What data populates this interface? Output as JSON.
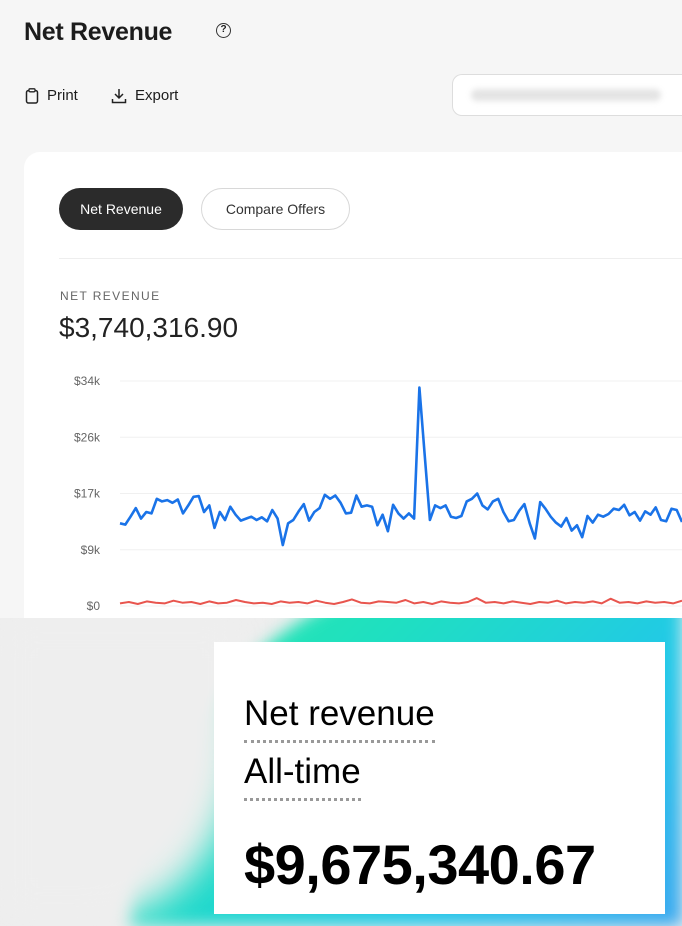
{
  "header": {
    "title": "Net Revenue",
    "help_icon": "question-circle-icon",
    "print_label": "Print",
    "export_label": "Export"
  },
  "card": {
    "tabs": [
      {
        "label": "Net Revenue",
        "active": true
      },
      {
        "label": "Compare Offers",
        "active": false
      }
    ],
    "metric_label": "NET REVENUE",
    "metric_value": "$3,740,316.90"
  },
  "chart_data": {
    "type": "line",
    "y_ticks": [
      "$34k",
      "$26k",
      "$17k",
      "$9k",
      "$0"
    ],
    "ylim": [
      0,
      34000
    ],
    "grid": true,
    "colors": [
      "#1a73e8",
      "#e8554e"
    ],
    "series": [
      {
        "values": [
          12500,
          12300,
          13500,
          14800,
          13200,
          14200,
          14000,
          16200,
          15800,
          16000,
          15600,
          16100,
          14000,
          15200,
          16500,
          16600,
          14200,
          15200,
          11800,
          14200,
          13000,
          15000,
          13800,
          12900,
          13200,
          13500,
          13000,
          13400,
          12800,
          14500,
          13200,
          9200,
          12500,
          13000,
          14300,
          15400,
          12900,
          14200,
          14800,
          16800,
          16200,
          16700,
          15600,
          14000,
          14100,
          16700,
          15000,
          15200,
          15000,
          12200,
          13800,
          11300,
          15300,
          14000,
          13200,
          14000,
          13200,
          33000,
          23000,
          13000,
          15200,
          14800,
          15200,
          13500,
          13300,
          13600,
          15800,
          16200,
          17000,
          15200,
          14600,
          15800,
          16200,
          14200,
          12800,
          13000,
          14400,
          15400,
          12500,
          10200,
          15700,
          14700,
          13500,
          12600,
          12000,
          13300,
          11400,
          12200,
          10400,
          13600,
          12600,
          13800,
          13500,
          13900,
          14700,
          14500,
          15300,
          13700,
          14200,
          12900,
          14300,
          13800,
          14900,
          13000,
          12800,
          14700,
          14500,
          12700
        ],
        "note": ""
      },
      {
        "values": [
          400,
          600,
          300,
          700,
          500,
          400,
          800,
          500,
          600,
          300,
          700,
          400,
          500,
          900,
          600,
          400,
          500,
          300,
          700,
          500,
          600,
          400,
          800,
          500,
          300,
          600,
          1000,
          500,
          400,
          700,
          600,
          500,
          900,
          400,
          600,
          300,
          700,
          500,
          400,
          600,
          1200,
          500,
          600,
          400,
          700,
          500,
          300,
          600,
          500,
          800,
          400,
          600,
          500,
          700,
          400,
          1100,
          500,
          600,
          400,
          700,
          500,
          600,
          400,
          800
        ]
      }
    ]
  },
  "overlay": {
    "line1": "Net revenue",
    "line2": "All-time",
    "value": "$9,675,340.67"
  }
}
